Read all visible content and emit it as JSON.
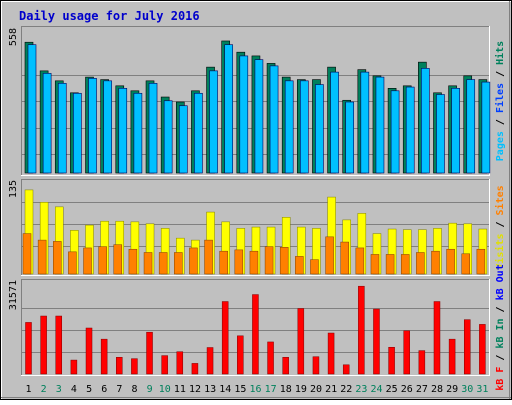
{
  "chart_data": {
    "type": "bar",
    "title": "Daily usage for July 2016",
    "categories": [
      "1",
      "2",
      "3",
      "4",
      "5",
      "6",
      "7",
      "8",
      "9",
      "10",
      "11",
      "12",
      "13",
      "14",
      "15",
      "16",
      "17",
      "18",
      "19",
      "20",
      "21",
      "22",
      "23",
      "24",
      "25",
      "26",
      "27",
      "28",
      "29",
      "30",
      "31"
    ],
    "weekend_days": [
      "2",
      "3",
      "9",
      "10",
      "16",
      "17",
      "23",
      "24",
      "30",
      "31"
    ],
    "panels": {
      "top": {
        "max_label": "558",
        "ymax": 558,
        "right_labels": [
          "Pages",
          "Files",
          "Hits"
        ],
        "series": [
          {
            "name": "Hits",
            "values": [
              525,
              410,
              370,
              322,
              385,
              375,
              350,
              330,
              370,
              305,
              285,
              330,
              425,
              530,
              485,
              470,
              440,
              385,
              375,
              375,
              425,
              292,
              415,
              390,
              340,
              350,
              445,
              322,
              350,
              390,
              375
            ]
          },
          {
            "name": "Files",
            "values": [
              515,
              400,
              360,
              320,
              380,
              370,
              340,
              320,
              360,
              290,
              270,
              320,
              410,
              515,
              470,
              455,
              430,
              370,
              370,
              355,
              405,
              285,
              405,
              385,
              330,
              345,
              420,
              315,
              340,
              375,
              365
            ]
          },
          {
            "name": "Pages",
            "values": [
              0,
              0,
              0,
              0,
              0,
              0,
              0,
              0,
              0,
              0,
              0,
              0,
              0,
              0,
              0,
              0,
              0,
              0,
              0,
              0,
              0,
              0,
              0,
              0,
              0,
              0,
              0,
              0,
              0,
              0,
              0
            ]
          }
        ]
      },
      "middle": {
        "max_label": "135",
        "ymax": 135,
        "right_labels": [
          "Visits",
          "Sites"
        ],
        "series": [
          {
            "name": "Visits",
            "values": [
              129,
              110,
              103,
              67,
              75,
              81,
              81,
              80,
              77,
              70,
              55,
              52,
              95,
              80,
              70,
              72,
              72,
              87,
              72,
              70,
              118,
              83,
              93,
              62,
              69,
              68,
              68,
              70,
              78,
              77,
              69
            ]
          },
          {
            "name": "Sites",
            "values": [
              62,
              52,
              50,
              34,
              40,
              42,
              45,
              38,
              33,
              33,
              33,
              40,
              52,
              35,
              37,
              35,
              42,
              41,
              27,
              22,
              57,
              49,
              40,
              30,
              30,
              30,
              33,
              35,
              38,
              31,
              38
            ]
          }
        ]
      },
      "bottom": {
        "max_label": "31571",
        "ymax": 31571,
        "right_labels": [
          "kB F",
          "kB In",
          "kB Out"
        ],
        "series": [
          {
            "name": "kB F",
            "values": [
              18500,
              20800,
              20800,
              5000,
              16500,
              12500,
              6000,
              5500,
              15000,
              6600,
              8000,
              3800,
              9500,
              26000,
              13700,
              28500,
              11500,
              6000,
              23500,
              6200,
              14700,
              3300,
              31500,
              23300,
              9600,
              15500,
              8400,
              26000,
              12500,
              19500,
              17800
            ]
          }
        ]
      }
    }
  }
}
